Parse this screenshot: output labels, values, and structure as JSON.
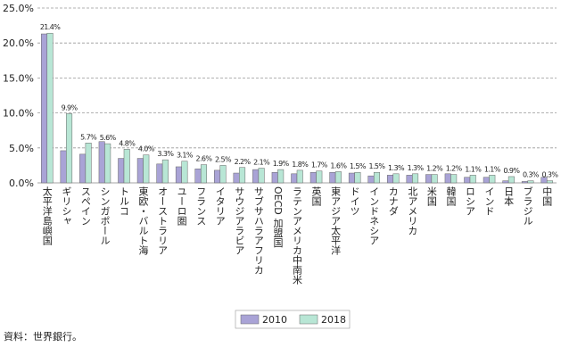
{
  "chart_data": {
    "type": "bar",
    "categories": [
      "太平洋島嶼国",
      "ギリシャ",
      "スペイン",
      "シンガポール",
      "トルコ",
      "東欧・バルト海",
      "オーストラリア",
      "ユーロ圏",
      "フランス",
      "イタリア",
      "サウジアラビア",
      "サブサハラアフリカ",
      "OECD 加盟国",
      "ラテンアメリカ中南米",
      "英国",
      "東アジア太平洋",
      "ドイツ",
      "インドネシア",
      "カナダ",
      "北アメリカ",
      "米国",
      "韓国",
      "ロシア",
      "インド",
      "日本",
      "ブラジル",
      "中国"
    ],
    "series": [
      {
        "name": "2010",
        "color": "#a9a3d6",
        "values": [
          21.3,
          4.6,
          4.1,
          5.9,
          3.5,
          3.5,
          2.7,
          2.3,
          2.0,
          1.8,
          1.4,
          1.9,
          1.5,
          1.3,
          1.5,
          1.5,
          1.4,
          1.0,
          1.1,
          1.1,
          1.2,
          1.3,
          0.8,
          0.8,
          0.3,
          0.2,
          0.8
        ]
      },
      {
        "name": "2018",
        "color": "#b8e6d5",
        "values": [
          21.4,
          9.9,
          5.7,
          5.6,
          4.8,
          4.0,
          3.3,
          3.1,
          2.6,
          2.5,
          2.2,
          2.1,
          1.9,
          1.8,
          1.7,
          1.6,
          1.5,
          1.5,
          1.3,
          1.3,
          1.2,
          1.2,
          1.1,
          1.1,
          0.9,
          0.3,
          0.3
        ],
        "value_labels": [
          "21.4%",
          "9.9%",
          "5.7%",
          "5.6%",
          "4.8%",
          "4.0%",
          "3.3%",
          "3.1%",
          "2.6%",
          "2.5%",
          "2.2%",
          "2.1%",
          "1.9%",
          "1.8%",
          "1.7%",
          "1.6%",
          "1.5%",
          "1.5%",
          "1.3%",
          "1.3%",
          "1.2%",
          "1.2%",
          "1.1%",
          "1.1%",
          "0.9%",
          "0.3%",
          "0.3%"
        ]
      }
    ],
    "ylim": [
      0,
      25
    ],
    "yticks": [
      {
        "value": 0,
        "label": "0.0%"
      },
      {
        "value": 5,
        "label": "5.0%"
      },
      {
        "value": 10,
        "label": "10.0%"
      },
      {
        "value": 15,
        "label": "15.0%"
      },
      {
        "value": 20,
        "label": "20.0%"
      },
      {
        "value": 25,
        "label": "25.0%"
      }
    ],
    "grid": true,
    "legend": "bottom",
    "source": "資料：世界銀行。"
  }
}
